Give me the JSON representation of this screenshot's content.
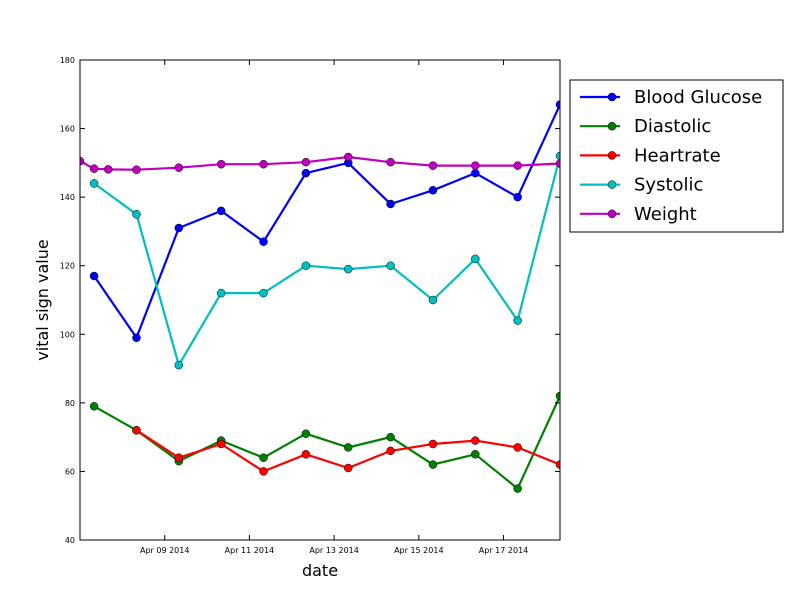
{
  "chart_data": {
    "type": "line",
    "xlabel": "date",
    "ylabel": "vital sign value",
    "ylim": [
      40,
      180
    ],
    "yticks": [
      "40",
      "60",
      "80",
      "100",
      "120",
      "140",
      "160",
      "180"
    ],
    "xlim": [
      "2014-04-07",
      "2014-04-18 08:00"
    ],
    "xticks": [
      {
        "label": "Apr 09 2014",
        "date": "2014-04-09"
      },
      {
        "label": "Apr 11 2014",
        "date": "2014-04-11"
      },
      {
        "label": "Apr 13 2014",
        "date": "2014-04-13"
      },
      {
        "label": "Apr 15 2014",
        "date": "2014-04-15"
      },
      {
        "label": "Apr 17 2014",
        "date": "2014-04-17"
      }
    ],
    "grid": false,
    "legend_position": "outside-right",
    "series": [
      {
        "name": "Blood Glucose",
        "color": "#0000ff",
        "points": [
          {
            "x": "2014-04-07 08:00",
            "y": 117
          },
          {
            "x": "2014-04-08 08:00",
            "y": 99
          },
          {
            "x": "2014-04-09 08:00",
            "y": 131
          },
          {
            "x": "2014-04-10 08:00",
            "y": 136
          },
          {
            "x": "2014-04-11 08:00",
            "y": 127
          },
          {
            "x": "2014-04-12 08:00",
            "y": 147
          },
          {
            "x": "2014-04-13 08:00",
            "y": 150
          },
          {
            "x": "2014-04-14 08:00",
            "y": 138
          },
          {
            "x": "2014-04-15 08:00",
            "y": 142
          },
          {
            "x": "2014-04-16 08:00",
            "y": 147
          },
          {
            "x": "2014-04-17 08:00",
            "y": 140
          },
          {
            "x": "2014-04-18 08:00",
            "y": 167
          }
        ]
      },
      {
        "name": "Diastolic",
        "color": "#008000",
        "points": [
          {
            "x": "2014-04-07 08:00",
            "y": 79
          },
          {
            "x": "2014-04-08 08:00",
            "y": 72
          },
          {
            "x": "2014-04-09 08:00",
            "y": 63
          },
          {
            "x": "2014-04-10 08:00",
            "y": 69
          },
          {
            "x": "2014-04-11 08:00",
            "y": 64
          },
          {
            "x": "2014-04-12 08:00",
            "y": 71
          },
          {
            "x": "2014-04-13 08:00",
            "y": 67
          },
          {
            "x": "2014-04-14 08:00",
            "y": 70
          },
          {
            "x": "2014-04-15 08:00",
            "y": 62
          },
          {
            "x": "2014-04-16 08:00",
            "y": 65
          },
          {
            "x": "2014-04-17 08:00",
            "y": 55
          },
          {
            "x": "2014-04-18 08:00",
            "y": 82
          }
        ]
      },
      {
        "name": "Heartrate",
        "color": "#ff0000",
        "points": [
          {
            "x": "2014-04-08 08:00",
            "y": 72
          },
          {
            "x": "2014-04-09 08:00",
            "y": 64
          },
          {
            "x": "2014-04-10 08:00",
            "y": 68
          },
          {
            "x": "2014-04-11 08:00",
            "y": 60
          },
          {
            "x": "2014-04-12 08:00",
            "y": 65
          },
          {
            "x": "2014-04-13 08:00",
            "y": 61
          },
          {
            "x": "2014-04-14 08:00",
            "y": 66
          },
          {
            "x": "2014-04-15 08:00",
            "y": 68
          },
          {
            "x": "2014-04-16 08:00",
            "y": 69
          },
          {
            "x": "2014-04-17 08:00",
            "y": 67
          },
          {
            "x": "2014-04-18 08:00",
            "y": 62
          }
        ]
      },
      {
        "name": "Systolic",
        "color": "#00bfbf",
        "points": [
          {
            "x": "2014-04-07 08:00",
            "y": 144
          },
          {
            "x": "2014-04-08 08:00",
            "y": 135
          },
          {
            "x": "2014-04-09 08:00",
            "y": 91
          },
          {
            "x": "2014-04-10 08:00",
            "y": 112
          },
          {
            "x": "2014-04-11 08:00",
            "y": 112
          },
          {
            "x": "2014-04-12 08:00",
            "y": 120
          },
          {
            "x": "2014-04-13 08:00",
            "y": 119
          },
          {
            "x": "2014-04-14 08:00",
            "y": 120
          },
          {
            "x": "2014-04-15 08:00",
            "y": 110
          },
          {
            "x": "2014-04-16 08:00",
            "y": 122
          },
          {
            "x": "2014-04-17 08:00",
            "y": 104
          },
          {
            "x": "2014-04-18 08:00",
            "y": 152
          }
        ]
      },
      {
        "name": "Weight",
        "color": "#bf00bf",
        "points": [
          {
            "x": "2014-04-07 00:00",
            "y": 150.5
          },
          {
            "x": "2014-04-07 08:00",
            "y": 148.3
          },
          {
            "x": "2014-04-07 16:00",
            "y": 148.1
          },
          {
            "x": "2014-04-08 08:00",
            "y": 148
          },
          {
            "x": "2014-04-09 08:00",
            "y": 148.6
          },
          {
            "x": "2014-04-10 08:00",
            "y": 149.6
          },
          {
            "x": "2014-04-11 08:00",
            "y": 149.6
          },
          {
            "x": "2014-04-12 08:00",
            "y": 150.2
          },
          {
            "x": "2014-04-13 08:00",
            "y": 151.7
          },
          {
            "x": "2014-04-14 08:00",
            "y": 150.2
          },
          {
            "x": "2014-04-15 08:00",
            "y": 149.2
          },
          {
            "x": "2014-04-16 08:00",
            "y": 149.2
          },
          {
            "x": "2014-04-17 08:00",
            "y": 149.2
          },
          {
            "x": "2014-04-18 08:00",
            "y": 149.8
          }
        ]
      }
    ]
  }
}
